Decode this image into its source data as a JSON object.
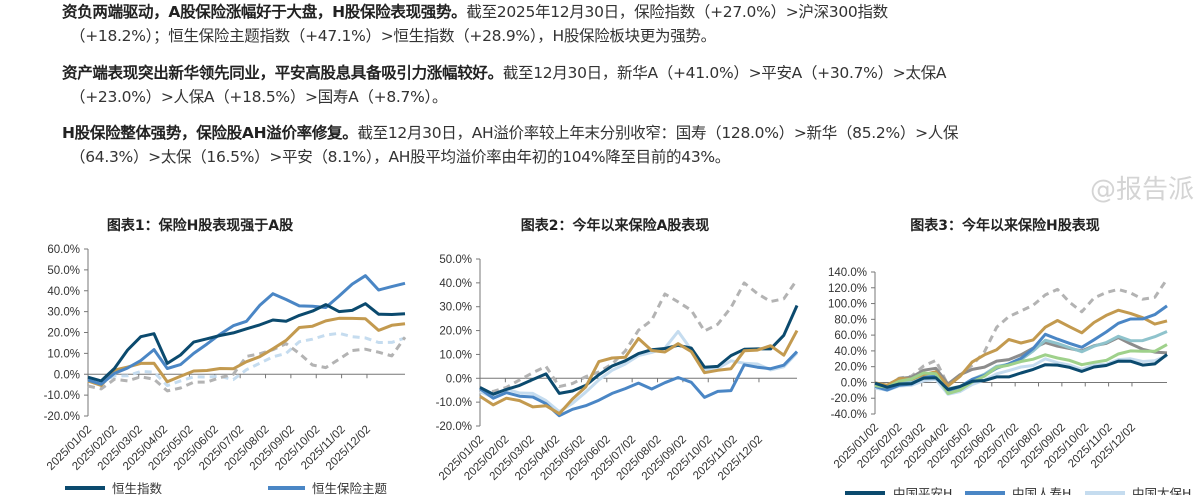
{
  "paragraphs": [
    {
      "bold": "资负两端驱动，A股保险涨幅好于大盘，H股保险表现强势。",
      "line1": "截至2025年12月30日，保险指数（+27.0%）>沪深300指数",
      "line2": "（+18.2%）；恒生保险主题指数（+47.1%）>恒生指数（+28.9%），H股保险板块更为强势。"
    },
    {
      "bold": "资产端表现突出新华领先同业，平安高股息具备吸引力涨幅较好。",
      "line1": "截至12月30日，新华A（+41.0%）>平安A（+30.7%）>太保A",
      "line2": "（+23.0%）>人保A（+18.5%）>国寿A（+8.7%）。"
    },
    {
      "bold": "H股保险整体强势，保险股AH溢价率修复。",
      "line1": "截至12月30日，AH溢价率较上年末分别收窄：国寿（128.0%）>新华（85.2%）>人保",
      "line2": "（64.3%）>太保（16.5%）>平安（8.1%），AH股平均溢价率由年初的104%降至目前的43%。"
    }
  ],
  "watermark": "@报告派",
  "chart_data": [
    {
      "type": "line",
      "title": "图表1：保险H股表现强于A股",
      "xlabel": "",
      "ylabel": "",
      "ylim": [
        -20,
        60
      ],
      "yticks": [
        60,
        50,
        40,
        30,
        20,
        10,
        0,
        -10,
        -20
      ],
      "ytick_suffix": ".0%",
      "x_tick_labels": [
        "2025/01/02",
        "2025/02/02",
        "2025/03/02",
        "2025/04/02",
        "2025/05/02",
        "2025/06/02",
        "2025/07/02",
        "2025/08/02",
        "2025/09/02",
        "2025/10/02",
        "2025/11/02",
        "2025/12/02"
      ],
      "x_points_note": "half-month samples",
      "series": [
        {
          "name": null,
          "color": "#c5dcef",
          "dash": true,
          "values": [
            -3,
            -4,
            -1,
            0,
            1,
            1,
            -6,
            -3,
            -2,
            -1,
            -1,
            -2,
            2,
            6,
            8,
            10,
            15,
            17,
            18,
            20,
            18,
            18,
            15,
            16,
            17
          ]
        },
        {
          "name": null,
          "color": "#b3b3b3",
          "dash": true,
          "values": [
            -6,
            -7,
            -3,
            -3,
            -2,
            -2,
            -8,
            -6,
            -4,
            -3,
            -2,
            0,
            8,
            10,
            11,
            15,
            10,
            5,
            3,
            8,
            11,
            12,
            10,
            9,
            17
          ]
        },
        {
          "name": null,
          "color": "#c39a4f",
          "dash": false,
          "values": [
            -4,
            -5,
            2,
            4,
            5,
            6,
            -4,
            -1,
            1,
            2,
            2,
            3,
            6,
            9,
            12,
            17,
            22,
            23,
            25,
            27,
            26,
            27,
            21,
            24,
            24
          ]
        },
        {
          "name": "恒生保险主题",
          "color": "#4a86c5",
          "dash": false,
          "values": [
            -3,
            -4,
            0,
            3,
            6,
            12,
            2,
            5,
            10,
            15,
            19,
            24,
            25,
            33,
            38,
            36,
            32,
            33,
            32,
            38,
            43,
            48,
            40,
            42,
            43
          ]
        },
        {
          "name": "恒生指数",
          "color": "#0b4a6e",
          "dash": false,
          "values": [
            -2,
            -3,
            2,
            12,
            18,
            20,
            5,
            10,
            15,
            17,
            18,
            20,
            21,
            24,
            26,
            26,
            28,
            31,
            33,
            30,
            30,
            34,
            28,
            29,
            29
          ]
        }
      ],
      "legend": [
        {
          "label": "恒生指数",
          "color": "#0b4a6e"
        },
        {
          "label": "恒生保险主题",
          "color": "#4a86c5"
        }
      ],
      "legend_position": "bottom"
    },
    {
      "type": "line",
      "title": "图表2：今年以来保险A股表现",
      "xlabel": "",
      "ylabel": "",
      "ylim": [
        -20,
        50
      ],
      "yticks": [
        50,
        40,
        30,
        20,
        10,
        0,
        -10,
        -20
      ],
      "ytick_suffix": ".0%",
      "x_tick_labels": [
        "2025/01/02",
        "2025/02/02",
        "2025/03/02",
        "2025/04/02",
        "2025/05/02",
        "2025/06/02",
        "2025/07/02",
        "2025/08/02",
        "2025/09/02",
        "2025/10/02",
        "2025/11/02",
        "2025/12/02"
      ],
      "series": [
        {
          "name": null,
          "color": "#b3b3b3",
          "dash": true,
          "values": [
            -6,
            -5,
            -4,
            0,
            2,
            5,
            -4,
            -2,
            0,
            3,
            6,
            12,
            20,
            25,
            35,
            32,
            28,
            20,
            22,
            30,
            40,
            36,
            32,
            34,
            41
          ]
        },
        {
          "name": null,
          "color": "#c5dcef",
          "dash": false,
          "values": [
            -6,
            -8,
            -5,
            -6,
            -7,
            -9,
            -14,
            -10,
            -6,
            0,
            3,
            6,
            9,
            11,
            12,
            20,
            12,
            4,
            4,
            8,
            6,
            6,
            3,
            5,
            10
          ]
        },
        {
          "name": null,
          "color": "#4a86c5",
          "dash": false,
          "values": [
            -5,
            -8,
            -6,
            -7,
            -8,
            -10,
            -16,
            -13,
            -12,
            -9,
            -7,
            -4,
            -2,
            -4,
            -2,
            1,
            -2,
            -8,
            -6,
            -5,
            5,
            5,
            4,
            6,
            11
          ]
        },
        {
          "name": null,
          "color": "#0b4a6e",
          "dash": false,
          "values": [
            -4,
            -6,
            -5,
            -3,
            -1,
            2,
            -7,
            -5,
            -3,
            2,
            5,
            8,
            10,
            12,
            12,
            14,
            12,
            5,
            5,
            10,
            12,
            13,
            12,
            18,
            30
          ]
        },
        {
          "name": null,
          "color": "#c39a4f",
          "dash": false,
          "values": [
            -8,
            -11,
            -9,
            -9,
            -12,
            -11,
            -15,
            -8,
            -4,
            7,
            8,
            9,
            16,
            12,
            11,
            15,
            11,
            3,
            3,
            4,
            11,
            12,
            13,
            10,
            20
          ]
        }
      ],
      "legend": []
    },
    {
      "type": "line",
      "title": "图表3：今年以来保险H股表现",
      "xlabel": "",
      "ylabel": "",
      "ylim": [
        -40,
        140
      ],
      "yticks": [
        140,
        120,
        100,
        80,
        60,
        40,
        20,
        0,
        -20,
        -40
      ],
      "ytick_suffix": ".0%",
      "x_tick_labels": [
        "2025/01/02",
        "2025/02/02",
        "2025/03/02",
        "2025/04/02",
        "2025/05/02",
        "2025/06/02",
        "2025/07/02",
        "2025/08/02",
        "2025/09/02",
        "2025/10/02",
        "2025/11/02",
        "2025/12/02"
      ],
      "series": [
        {
          "name": null,
          "color": "#b3b3b3",
          "dash": true,
          "values": [
            -3,
            -2,
            5,
            10,
            20,
            28,
            -5,
            10,
            20,
            40,
            70,
            85,
            90,
            100,
            110,
            118,
            100,
            90,
            105,
            115,
            118,
            115,
            105,
            110,
            130
          ]
        },
        {
          "name": "中国太保H",
          "color": "#c5dcef",
          "dash": false,
          "values": [
            -8,
            -10,
            -6,
            -3,
            0,
            5,
            -15,
            -10,
            -3,
            5,
            10,
            15,
            18,
            22,
            28,
            26,
            22,
            18,
            22,
            25,
            28,
            30,
            25,
            28,
            32
          ]
        },
        {
          "name": null,
          "color": "#8c8c8c",
          "dash": false,
          "values": [
            -4,
            -3,
            5,
            8,
            15,
            20,
            -3,
            10,
            15,
            20,
            25,
            30,
            35,
            45,
            50,
            48,
            42,
            40,
            45,
            50,
            55,
            50,
            42,
            40,
            37
          ]
        },
        {
          "name": null,
          "color": "#8fc3cc",
          "dash": false,
          "values": [
            -5,
            -6,
            -2,
            2,
            6,
            10,
            -10,
            -4,
            4,
            12,
            20,
            25,
            28,
            40,
            52,
            50,
            42,
            40,
            46,
            52,
            58,
            55,
            52,
            58,
            63
          ]
        },
        {
          "name": null,
          "color": "#c39a4f",
          "dash": false,
          "values": [
            -2,
            -3,
            3,
            5,
            10,
            15,
            -5,
            10,
            25,
            35,
            40,
            55,
            48,
            55,
            70,
            80,
            70,
            65,
            75,
            85,
            90,
            88,
            80,
            75,
            78
          ]
        },
        {
          "name": "中国人寿H",
          "color": "#4a86c5",
          "dash": false,
          "values": [
            -5,
            -8,
            -4,
            0,
            5,
            8,
            -12,
            -5,
            2,
            10,
            18,
            25,
            30,
            45,
            60,
            55,
            48,
            45,
            52,
            65,
            75,
            82,
            80,
            88,
            96
          ]
        },
        {
          "name": null,
          "color": "#9fd18b",
          "dash": false,
          "values": [
            -5,
            -6,
            0,
            5,
            10,
            12,
            -14,
            -8,
            0,
            10,
            18,
            22,
            25,
            30,
            33,
            32,
            28,
            24,
            25,
            30,
            35,
            40,
            38,
            40,
            46
          ]
        },
        {
          "name": "中国平安H",
          "color": "#0b4a6e",
          "dash": false,
          "values": [
            -3,
            -5,
            -2,
            0,
            5,
            8,
            -10,
            -5,
            0,
            3,
            5,
            8,
            12,
            18,
            22,
            24,
            18,
            14,
            18,
            22,
            25,
            28,
            22,
            25,
            35
          ]
        }
      ],
      "legend": [
        {
          "label": "中国平安H",
          "color": "#0b4a6e"
        },
        {
          "label": "中国人寿H",
          "color": "#4a86c5"
        },
        {
          "label": "中国太保H",
          "color": "#c5dcef"
        }
      ],
      "legend_position": "bottom"
    }
  ]
}
